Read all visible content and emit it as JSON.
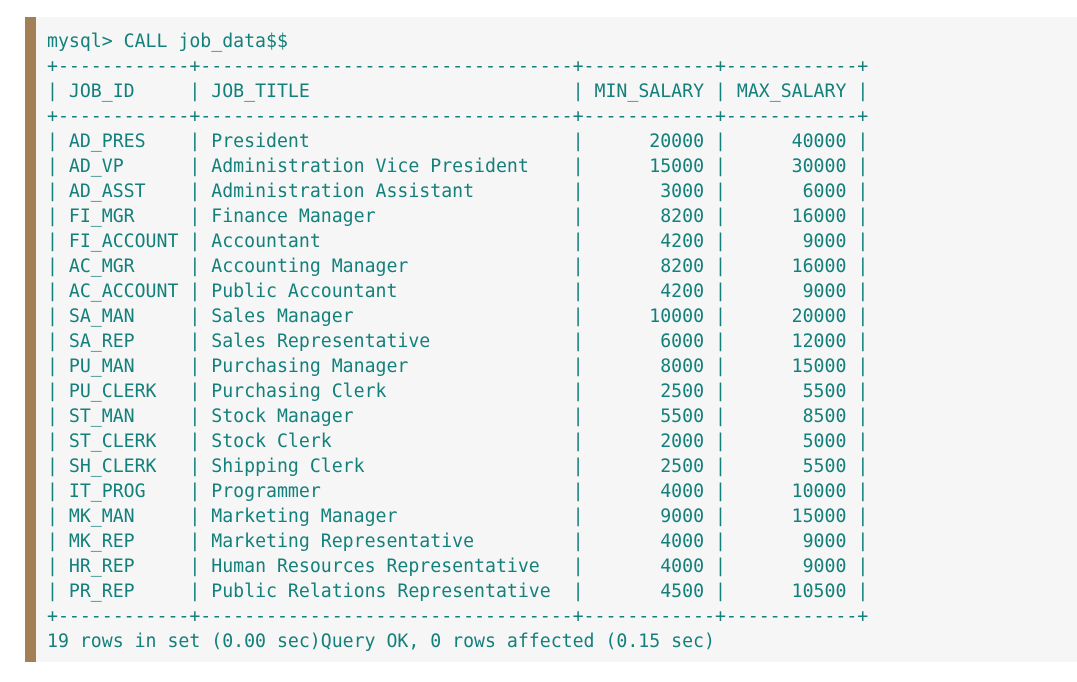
{
  "terminal": {
    "prompt_line": "mysql> CALL job_data$$",
    "border": "+------------+----------------------------------+------------+------------+",
    "columns": [
      "JOB_ID",
      "JOB_TITLE",
      "MIN_SALARY",
      "MAX_SALARY"
    ],
    "rows": [
      [
        "AD_PRES",
        "President",
        "20000",
        "40000"
      ],
      [
        "AD_VP",
        "Administration Vice President",
        "15000",
        "30000"
      ],
      [
        "AD_ASST",
        "Administration Assistant",
        "3000",
        "6000"
      ],
      [
        "FI_MGR",
        "Finance Manager",
        "8200",
        "16000"
      ],
      [
        "FI_ACCOUNT",
        "Accountant",
        "4200",
        "9000"
      ],
      [
        "AC_MGR",
        "Accounting Manager",
        "8200",
        "16000"
      ],
      [
        "AC_ACCOUNT",
        "Public Accountant",
        "4200",
        "9000"
      ],
      [
        "SA_MAN",
        "Sales Manager",
        "10000",
        "20000"
      ],
      [
        "SA_REP",
        "Sales Representative",
        "6000",
        "12000"
      ],
      [
        "PU_MAN",
        "Purchasing Manager",
        "8000",
        "15000"
      ],
      [
        "PU_CLERK",
        "Purchasing Clerk",
        "2500",
        "5500"
      ],
      [
        "ST_MAN",
        "Stock Manager",
        "5500",
        "8500"
      ],
      [
        "ST_CLERK",
        "Stock Clerk",
        "2000",
        "5000"
      ],
      [
        "SH_CLERK",
        "Shipping Clerk",
        "2500",
        "5500"
      ],
      [
        "IT_PROG",
        "Programmer",
        "4000",
        "10000"
      ],
      [
        "MK_MAN",
        "Marketing Manager",
        "9000",
        "15000"
      ],
      [
        "MK_REP",
        "Marketing Representative",
        "4000",
        "9000"
      ],
      [
        "HR_REP",
        "Human Resources Representative",
        "4000",
        "9000"
      ],
      [
        "PR_REP",
        "Public Relations Representative",
        "4500",
        "10500"
      ]
    ],
    "footer_line": "19 rows in set (0.00 sec)Query OK, 0 rows affected (0.15 sec)"
  },
  "colors": {
    "text": "#13807b",
    "background": "#f6f6f6",
    "accent_bar": "#a27f55"
  }
}
